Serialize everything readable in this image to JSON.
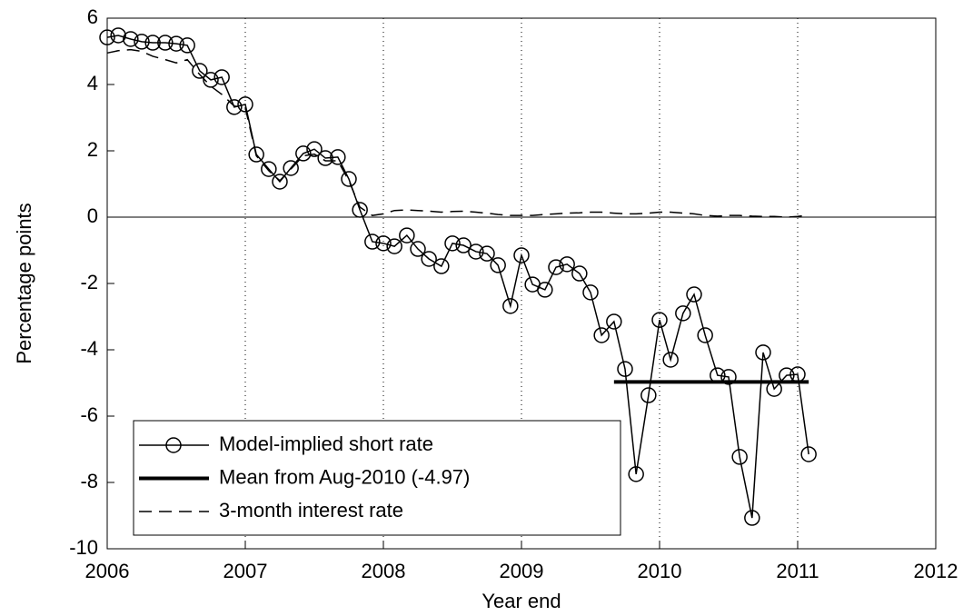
{
  "chart_data": {
    "type": "line",
    "xlabel": "Year end",
    "ylabel": "Percentage points",
    "xlim": [
      2006,
      2012
    ],
    "xticks": [
      2006,
      2007,
      2008,
      2009,
      2010,
      2011,
      2012
    ],
    "ylim": [
      -10,
      6
    ],
    "yticks": [
      -10,
      -8,
      -6,
      -4,
      -2,
      0,
      2,
      4,
      6
    ],
    "xgrid": true,
    "hline": 0,
    "legend": "lower left",
    "x": [
      2006.0,
      2006.08,
      2006.17,
      2006.25,
      2006.33,
      2006.42,
      2006.5,
      2006.58,
      2006.67,
      2006.75,
      2006.83,
      2006.92,
      2007.0,
      2007.08,
      2007.17,
      2007.25,
      2007.33,
      2007.42,
      2007.5,
      2007.58,
      2007.67,
      2007.75,
      2007.83,
      2007.92,
      2008.0,
      2008.08,
      2008.17,
      2008.25,
      2008.33,
      2008.42,
      2008.5,
      2008.58,
      2008.67,
      2008.75,
      2008.83,
      2008.92,
      2009.0,
      2009.08,
      2009.17,
      2009.25,
      2009.33,
      2009.42,
      2009.5,
      2009.58,
      2009.67,
      2009.75,
      2009.83,
      2009.92,
      2010.0,
      2010.08,
      2010.17,
      2010.25,
      2010.33,
      2010.42,
      2010.5,
      2010.58,
      2010.67,
      2010.75,
      2010.83,
      2010.92,
      2011.0,
      2011.08
    ],
    "series": [
      {
        "name": "Model-implied short rate",
        "color": "#000000",
        "linestyle": "solid",
        "linewidth": 1.5,
        "marker": "circle",
        "values": [
          5.42,
          5.48,
          5.37,
          5.29,
          5.26,
          5.26,
          5.23,
          5.18,
          4.41,
          4.14,
          4.22,
          3.32,
          3.4,
          1.89,
          1.45,
          1.07,
          1.48,
          1.92,
          2.05,
          1.78,
          1.81,
          1.15,
          0.22,
          -0.74,
          -0.79,
          -0.88,
          -0.55,
          -0.96,
          -1.26,
          -1.48,
          -0.79,
          -0.85,
          -1.04,
          -1.1,
          -1.45,
          -2.68,
          -1.15,
          -2.03,
          -2.19,
          -1.51,
          -1.42,
          -1.7,
          -2.27,
          -3.56,
          -3.15,
          -4.58,
          -7.75,
          -5.37,
          -3.1,
          -4.3,
          -2.9,
          -2.33,
          -3.56,
          -4.77,
          -4.82,
          -7.23,
          -9.07,
          -4.08,
          -5.18,
          -4.77,
          -4.74,
          -7.15
        ]
      },
      {
        "name": "Mean from Aug-2010 (-4.97)",
        "color": "#000000",
        "linestyle": "solid",
        "linewidth": 4,
        "x": [
          2009.67,
          2011.08
        ],
        "values": [
          -4.97,
          -4.97
        ]
      },
      {
        "name": "3-month interest rate",
        "color": "#000000",
        "linestyle": "dashed",
        "linewidth": 1.5,
        "values": [
          4.95,
          5.02,
          5.05,
          5.0,
          4.85,
          4.75,
          4.65,
          4.75,
          4.3,
          3.95,
          3.7,
          3.35,
          3.3,
          1.85,
          1.4,
          1.1,
          1.45,
          1.85,
          1.9,
          1.7,
          1.7,
          1.1,
          0.3,
          0.05,
          0.1,
          0.2,
          0.22,
          0.2,
          0.18,
          0.15,
          0.17,
          0.18,
          0.15,
          0.12,
          0.08,
          0.05,
          0.05,
          0.05,
          0.08,
          0.1,
          0.12,
          0.13,
          0.15,
          0.15,
          0.12,
          0.1,
          0.1,
          0.12,
          0.15,
          0.15,
          0.12,
          0.1,
          0.05,
          0.03,
          0.05,
          0.05,
          0.03,
          0.02,
          0.02,
          0.0,
          0.02,
          0.07
        ]
      }
    ]
  }
}
